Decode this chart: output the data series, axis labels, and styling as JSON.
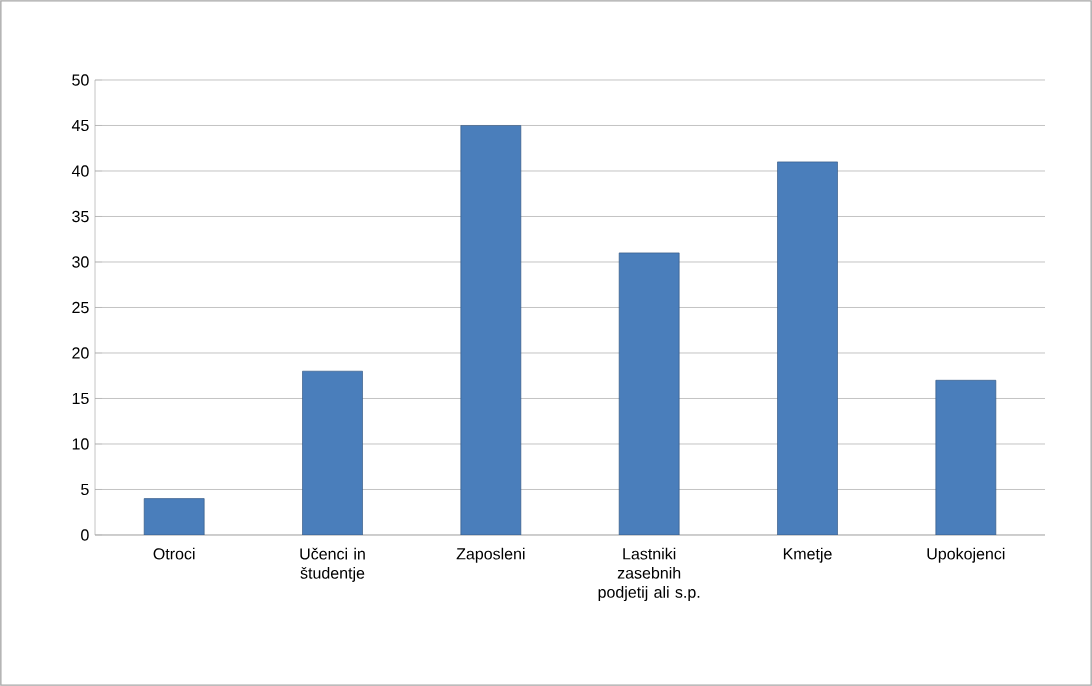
{
  "chart_data": {
    "type": "bar",
    "categories": [
      "Otroci",
      "Učenci in študentje",
      "Zaposleni",
      "Lastniki zasebnih podjetij ali s.p.",
      "Kmetje",
      "Upokojenci"
    ],
    "values": [
      4,
      18,
      45,
      31,
      41,
      17
    ],
    "color": "#4a7ebb",
    "ylim": [
      0,
      50
    ],
    "yticks": [
      0,
      5,
      10,
      15,
      20,
      25,
      30,
      35,
      40,
      45,
      50
    ],
    "grid": "y"
  }
}
